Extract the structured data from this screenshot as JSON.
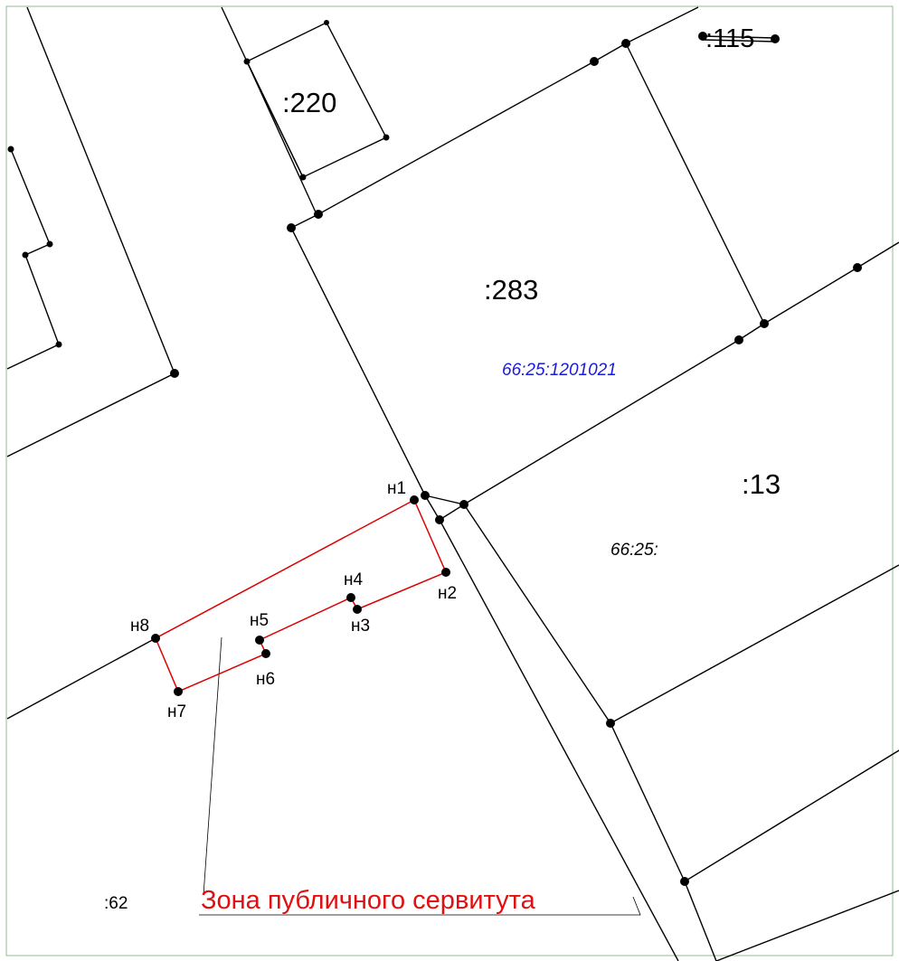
{
  "map": {
    "parcels": [
      ":115",
      ":220",
      ":283",
      ":13",
      ":62"
    ],
    "quarters": [
      "66:25:1201021",
      "66:25:"
    ],
    "points": [
      "н1",
      "н2",
      "н3",
      "н4",
      "н5",
      "н6",
      "н7",
      "н8"
    ],
    "zone_label": "Зона публичного сервитута"
  }
}
